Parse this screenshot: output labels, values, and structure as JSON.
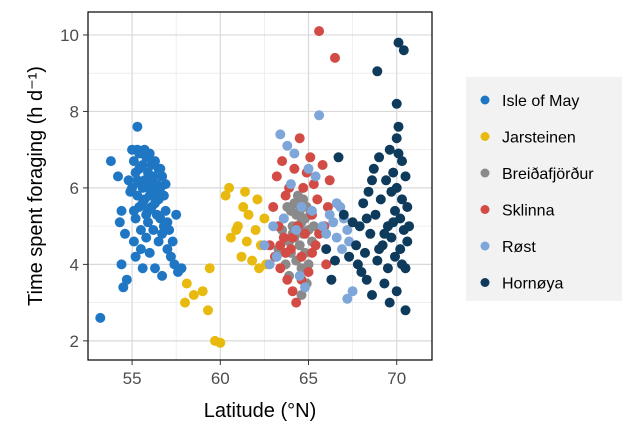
{
  "chart_data": {
    "type": "scatter",
    "xlabel": "Latitude (°N)",
    "ylabel": "Time spent foraging (h d⁻¹)",
    "xlim": [
      52.5,
      72
    ],
    "ylim": [
      1.5,
      10.6
    ],
    "xticks": [
      55,
      60,
      65,
      70
    ],
    "yticks": [
      2,
      4,
      6,
      8,
      10
    ],
    "grid": true,
    "legend_position": "right",
    "series": [
      {
        "name": "Isle of May",
        "color": "#1f77c4",
        "points": [
          [
            53.2,
            2.6
          ],
          [
            53.8,
            6.7
          ],
          [
            54.2,
            6.3
          ],
          [
            54.3,
            5.1
          ],
          [
            54.4,
            5.4
          ],
          [
            54.4,
            4.0
          ],
          [
            54.5,
            3.4
          ],
          [
            54.6,
            4.8
          ],
          [
            54.7,
            3.6
          ],
          [
            54.8,
            6.2
          ],
          [
            54.9,
            5.9
          ],
          [
            55.0,
            6.0
          ],
          [
            55.0,
            7.0
          ],
          [
            55.1,
            5.4
          ],
          [
            55.1,
            4.6
          ],
          [
            55.2,
            6.4
          ],
          [
            55.2,
            5.2
          ],
          [
            55.2,
            4.2
          ],
          [
            55.3,
            7.0
          ],
          [
            55.3,
            7.6
          ],
          [
            55.3,
            5.8
          ],
          [
            55.4,
            6.9
          ],
          [
            55.4,
            6.5
          ],
          [
            55.4,
            5.5
          ],
          [
            55.5,
            6.1
          ],
          [
            55.5,
            4.9
          ],
          [
            55.5,
            4.4
          ],
          [
            55.6,
            6.6
          ],
          [
            55.6,
            5.6
          ],
          [
            55.6,
            3.9
          ],
          [
            55.7,
            7.0
          ],
          [
            55.7,
            6.2
          ],
          [
            55.7,
            5.7
          ],
          [
            55.8,
            6.8
          ],
          [
            55.8,
            5.3
          ],
          [
            55.8,
            4.7
          ],
          [
            55.9,
            6.4
          ],
          [
            55.9,
            6.0
          ],
          [
            55.9,
            5.1
          ],
          [
            56.0,
            6.9
          ],
          [
            56.0,
            5.8
          ],
          [
            56.0,
            4.3
          ],
          [
            56.1,
            6.6
          ],
          [
            56.1,
            5.5
          ],
          [
            56.2,
            6.3
          ],
          [
            56.2,
            5.9
          ],
          [
            56.2,
            4.9
          ],
          [
            56.3,
            6.7
          ],
          [
            56.3,
            5.6
          ],
          [
            56.3,
            3.9
          ],
          [
            56.4,
            6.1
          ],
          [
            56.4,
            5.3
          ],
          [
            56.5,
            6.5
          ],
          [
            56.5,
            5.7
          ],
          [
            56.5,
            4.6
          ],
          [
            56.6,
            6.0
          ],
          [
            56.6,
            5.2
          ],
          [
            56.7,
            6.3
          ],
          [
            56.7,
            4.8
          ],
          [
            56.7,
            3.7
          ],
          [
            56.8,
            5.8
          ],
          [
            56.8,
            5.0
          ],
          [
            56.9,
            5.4
          ],
          [
            57.0,
            5.1
          ],
          [
            57.0,
            4.4
          ],
          [
            57.1,
            4.9
          ],
          [
            57.2,
            4.2
          ],
          [
            57.3,
            4.6
          ],
          [
            57.4,
            4.0
          ],
          [
            57.5,
            5.3
          ],
          [
            57.6,
            3.8
          ],
          [
            57.8,
            3.9
          ],
          [
            55.1,
            6.7
          ],
          [
            55.3,
            6.2
          ],
          [
            55.6,
            6.0
          ],
          [
            55.9,
            5.4
          ],
          [
            56.1,
            6.1
          ],
          [
            56.4,
            5.8
          ],
          [
            56.6,
            6.5
          ],
          [
            56.9,
            6.1
          ]
        ]
      },
      {
        "name": "Jarsteinen",
        "color": "#e8b90f",
        "points": [
          [
            58.0,
            3.0
          ],
          [
            58.1,
            3.5
          ],
          [
            58.5,
            3.2
          ],
          [
            59.0,
            3.3
          ],
          [
            59.3,
            2.8
          ],
          [
            59.4,
            3.9
          ],
          [
            59.7,
            2.0
          ],
          [
            60.0,
            1.95
          ],
          [
            60.3,
            5.8
          ],
          [
            60.5,
            6.0
          ],
          [
            60.6,
            4.7
          ],
          [
            60.9,
            4.9
          ],
          [
            61.0,
            5.0
          ],
          [
            61.2,
            4.2
          ],
          [
            61.3,
            5.5
          ],
          [
            61.5,
            4.6
          ],
          [
            61.6,
            5.3
          ],
          [
            61.8,
            4.1
          ],
          [
            62.0,
            4.9
          ],
          [
            62.1,
            5.7
          ],
          [
            62.3,
            4.5
          ],
          [
            62.5,
            5.2
          ],
          [
            62.6,
            4.0
          ],
          [
            61.4,
            5.9
          ],
          [
            62.2,
            3.9
          ]
        ]
      },
      {
        "name": "Breiðafjörður",
        "color": "#8a8a8a",
        "points": [
          [
            63.3,
            4.4
          ],
          [
            63.5,
            4.9
          ],
          [
            63.6,
            5.2
          ],
          [
            63.7,
            4.0
          ],
          [
            63.8,
            5.5
          ],
          [
            63.9,
            4.6
          ],
          [
            63.9,
            3.7
          ],
          [
            64.0,
            5.4
          ],
          [
            64.0,
            4.3
          ],
          [
            64.1,
            5.0
          ],
          [
            64.2,
            5.6
          ],
          [
            64.2,
            4.7
          ],
          [
            64.3,
            5.3
          ],
          [
            64.3,
            4.1
          ],
          [
            64.4,
            5.8
          ],
          [
            64.4,
            4.9
          ],
          [
            64.5,
            5.4
          ],
          [
            64.5,
            4.5
          ],
          [
            64.6,
            5.1
          ],
          [
            64.6,
            3.9
          ],
          [
            64.7,
            5.7
          ],
          [
            64.7,
            4.8
          ],
          [
            64.8,
            5.2
          ],
          [
            64.8,
            4.3
          ],
          [
            64.9,
            5.5
          ],
          [
            65.0,
            4.9
          ],
          [
            65.0,
            4.0
          ],
          [
            65.1,
            5.3
          ],
          [
            65.2,
            4.6
          ],
          [
            64.6,
            3.2
          ],
          [
            64.9,
            3.5
          ],
          [
            64.1,
            4.8
          ],
          [
            64.3,
            5.0
          ],
          [
            64.5,
            5.0
          ],
          [
            65.3,
            5.0
          ]
        ]
      },
      {
        "name": "Sklinna",
        "color": "#d24b45",
        "points": [
          [
            62.8,
            4.5
          ],
          [
            63.0,
            5.5
          ],
          [
            63.1,
            4.2
          ],
          [
            63.2,
            6.3
          ],
          [
            63.3,
            5.0
          ],
          [
            63.4,
            3.9
          ],
          [
            63.5,
            6.7
          ],
          [
            63.6,
            4.7
          ],
          [
            63.7,
            5.8
          ],
          [
            63.8,
            3.6
          ],
          [
            63.9,
            6.0
          ],
          [
            64.0,
            4.4
          ],
          [
            64.1,
            3.3
          ],
          [
            64.2,
            6.5
          ],
          [
            64.3,
            3.0
          ],
          [
            64.4,
            5.0
          ],
          [
            64.5,
            7.3
          ],
          [
            64.6,
            4.2
          ],
          [
            64.7,
            6.0
          ],
          [
            64.8,
            4.8
          ],
          [
            64.9,
            6.4
          ],
          [
            65.0,
            3.8
          ],
          [
            65.1,
            6.8
          ],
          [
            65.2,
            5.3
          ],
          [
            65.3,
            6.1
          ],
          [
            65.4,
            4.5
          ],
          [
            65.5,
            5.7
          ],
          [
            65.6,
            10.1
          ],
          [
            65.8,
            6.6
          ],
          [
            65.9,
            5.0
          ],
          [
            66.0,
            4.0
          ],
          [
            66.1,
            5.5
          ],
          [
            66.2,
            6.2
          ],
          [
            66.5,
            9.4
          ],
          [
            63.4,
            4.5
          ],
          [
            63.7,
            4.3
          ],
          [
            64.1,
            4.7
          ],
          [
            64.6,
            3.6
          ],
          [
            65.2,
            4.3
          ],
          [
            65.6,
            4.8
          ]
        ]
      },
      {
        "name": "Røst",
        "color": "#7fa6d9",
        "points": [
          [
            62.5,
            4.5
          ],
          [
            62.8,
            4.0
          ],
          [
            63.0,
            5.0
          ],
          [
            63.2,
            4.2
          ],
          [
            63.4,
            7.4
          ],
          [
            63.6,
            5.2
          ],
          [
            63.8,
            7.1
          ],
          [
            64.0,
            6.1
          ],
          [
            64.2,
            6.9
          ],
          [
            64.3,
            4.9
          ],
          [
            64.5,
            3.7
          ],
          [
            64.6,
            5.5
          ],
          [
            64.8,
            3.4
          ],
          [
            65.0,
            6.5
          ],
          [
            65.2,
            5.4
          ],
          [
            65.4,
            6.3
          ],
          [
            65.6,
            7.9
          ],
          [
            65.8,
            5.0
          ],
          [
            66.0,
            4.8
          ],
          [
            66.2,
            5.3
          ],
          [
            66.4,
            5.1
          ],
          [
            66.6,
            4.7
          ],
          [
            66.8,
            5.5
          ],
          [
            67.0,
            5.2
          ],
          [
            67.2,
            4.9
          ],
          [
            67.3,
            4.6
          ],
          [
            67.5,
            3.3
          ],
          [
            67.2,
            3.1
          ],
          [
            66.9,
            4.4
          ],
          [
            66.6,
            5.6
          ]
        ]
      },
      {
        "name": "Hornøya",
        "color": "#0e3a5c",
        "points": [
          [
            66.0,
            4.4
          ],
          [
            66.3,
            3.6
          ],
          [
            66.5,
            4.1
          ],
          [
            66.7,
            6.8
          ],
          [
            67.0,
            5.3
          ],
          [
            67.3,
            4.2
          ],
          [
            67.5,
            5.1
          ],
          [
            67.7,
            4.5
          ],
          [
            67.9,
            5.0
          ],
          [
            68.0,
            3.8
          ],
          [
            68.1,
            5.6
          ],
          [
            68.2,
            4.3
          ],
          [
            68.3,
            3.6
          ],
          [
            68.4,
            5.9
          ],
          [
            68.5,
            4.8
          ],
          [
            68.6,
            3.2
          ],
          [
            68.7,
            6.5
          ],
          [
            68.8,
            5.3
          ],
          [
            68.9,
            4.1
          ],
          [
            68.9,
            9.05
          ],
          [
            69.0,
            6.8
          ],
          [
            69.1,
            5.7
          ],
          [
            69.2,
            4.5
          ],
          [
            69.3,
            3.5
          ],
          [
            69.4,
            6.2
          ],
          [
            69.5,
            5.0
          ],
          [
            69.5,
            3.9
          ],
          [
            69.6,
            7.0
          ],
          [
            69.7,
            5.9
          ],
          [
            69.7,
            4.7
          ],
          [
            69.8,
            6.4
          ],
          [
            69.9,
            5.4
          ],
          [
            69.9,
            4.2
          ],
          [
            70.0,
            8.2
          ],
          [
            70.0,
            6.0
          ],
          [
            70.0,
            3.3
          ],
          [
            70.1,
            9.8
          ],
          [
            70.1,
            7.6
          ],
          [
            70.2,
            5.2
          ],
          [
            70.2,
            4.4
          ],
          [
            70.3,
            6.7
          ],
          [
            70.3,
            5.7
          ],
          [
            70.4,
            9.6
          ],
          [
            70.4,
            4.9
          ],
          [
            70.5,
            6.3
          ],
          [
            70.5,
            3.9
          ],
          [
            70.6,
            5.5
          ],
          [
            70.6,
            4.6
          ],
          [
            70.7,
            5.0
          ],
          [
            70.5,
            2.8
          ],
          [
            70.3,
            4.0
          ],
          [
            70.0,
            7.3
          ],
          [
            69.6,
            3.0
          ],
          [
            69.3,
            4.8
          ],
          [
            69.0,
            4.4
          ],
          [
            68.6,
            6.2
          ],
          [
            68.3,
            5.2
          ],
          [
            67.8,
            4.0
          ],
          [
            69.8,
            5.1
          ],
          [
            70.1,
            6.9
          ]
        ]
      }
    ]
  }
}
